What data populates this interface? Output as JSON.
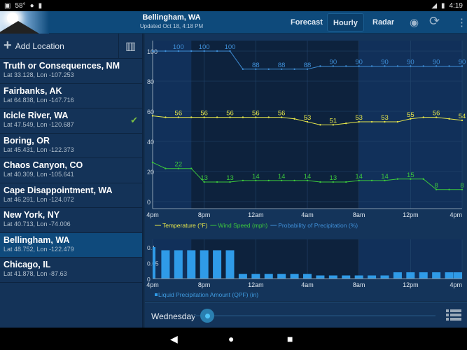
{
  "status_bar": {
    "temp": "58°",
    "time": "4:19"
  },
  "header": {
    "title": "Bellingham, WA",
    "subtitle": "Updated Oct 18, 4:18 PM",
    "tabs": [
      {
        "label": "Forecast",
        "active": false
      },
      {
        "label": "Hourly",
        "active": true
      },
      {
        "label": "Radar",
        "active": false
      }
    ],
    "icons": [
      "location-icon",
      "refresh-icon",
      "more-icon"
    ]
  },
  "sidebar": {
    "add_label": "Add Location",
    "locations": [
      {
        "name": "Truth or Consequences, NM",
        "coords": "Lat 33.128, Lon -107.253"
      },
      {
        "name": "Fairbanks, AK",
        "coords": "Lat 64.838, Lon -147.716"
      },
      {
        "name": "Icicle River, WA",
        "coords": "Lat 47.549, Lon -120.687",
        "checked": true
      },
      {
        "name": "Boring, OR",
        "coords": "Lat 45.431, Lon -122.373"
      },
      {
        "name": "Chaos Canyon, CO",
        "coords": "Lat 40.309, Lon -105.641"
      },
      {
        "name": "Cape Disappointment, WA",
        "coords": "Lat 46.291, Lon -124.072"
      },
      {
        "name": "New York, NY",
        "coords": "Lat 40.713, Lon -74.006"
      },
      {
        "name": "Bellingham, WA",
        "coords": "Lat 48.752, Lon -122.479",
        "selected": true
      },
      {
        "name": "Chicago, IL",
        "coords": "Lat 41.878, Lon -87.63"
      }
    ]
  },
  "chart_data": [
    {
      "type": "line",
      "x_ticks": [
        "4pm",
        "8pm",
        "12am",
        "4am",
        "8am",
        "12pm",
        "4pm"
      ],
      "ylim": [
        0,
        100
      ],
      "y_ticks": [
        0,
        20,
        40,
        60,
        80,
        100
      ],
      "grid": true,
      "legend": "bottom-left",
      "shaded_range": [
        "7pm",
        "8am"
      ],
      "hours": 25,
      "series": [
        {
          "name": "Temperature (°F)",
          "color": "#e8e84a",
          "values": [
            57,
            56,
            56,
            56,
            56,
            56,
            56,
            56,
            56,
            56,
            56,
            55,
            53,
            51,
            51,
            52,
            53,
            53,
            53,
            53,
            55,
            56,
            56,
            55,
            54
          ],
          "labels_every": 2
        },
        {
          "name": "Wind Speed (mph)",
          "color": "#3cc83c",
          "values": [
            26,
            22,
            22,
            22,
            13,
            13,
            13,
            14,
            14,
            14,
            14,
            14,
            14,
            13,
            13,
            13,
            14,
            14,
            14,
            15,
            15,
            15,
            8,
            8,
            8
          ],
          "labels_every": 2
        },
        {
          "name": "Probability of Precipitation (%)",
          "color": "#3f8fd8",
          "values": [
            100,
            100,
            100,
            100,
            100,
            100,
            100,
            88,
            88,
            88,
            88,
            88,
            88,
            90,
            90,
            90,
            90,
            90,
            90,
            90,
            90,
            90,
            90,
            90,
            90
          ],
          "labels_every": 2
        }
      ]
    },
    {
      "type": "bar",
      "x_ticks": [
        "4pm",
        "8pm",
        "12am",
        "4am",
        "8am",
        "12pm",
        "4pm"
      ],
      "ylim": [
        0,
        0.1
      ],
      "y_ticks": [
        "0",
        "0.05",
        "0.1"
      ],
      "legend": "bottom-left",
      "series": [
        {
          "name": "Liquid Precipitation Amount (QPF) (in)",
          "color": "#2f9be8",
          "values": [
            0.1,
            0.09,
            0.09,
            0.09,
            0.09,
            0.09,
            0.09,
            0.015,
            0.015,
            0.015,
            0.015,
            0.015,
            0.015,
            0.01,
            0.01,
            0.01,
            0.01,
            0.01,
            0.01,
            0.02,
            0.02,
            0.02,
            0.02,
            0.02,
            0.02
          ]
        }
      ]
    }
  ],
  "footer": {
    "day": "Wednesday"
  }
}
